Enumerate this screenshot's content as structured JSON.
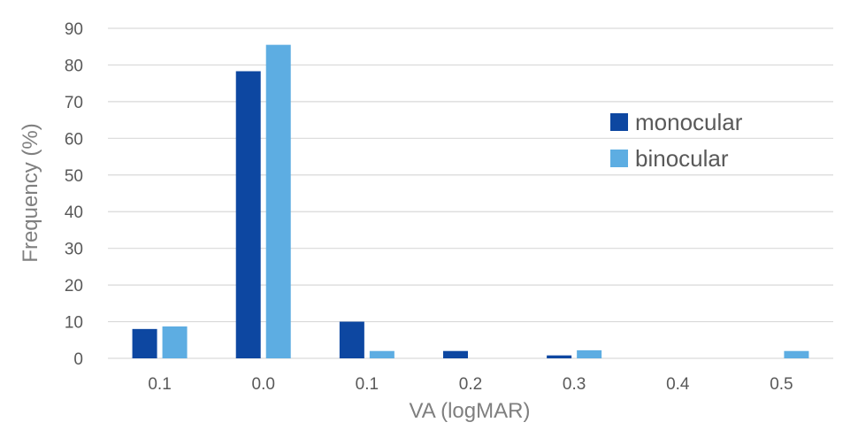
{
  "chart_data": {
    "type": "bar",
    "categories": [
      "0.1",
      "0.0",
      "0.1",
      "0.2",
      "0.3",
      "0.4",
      "0.5"
    ],
    "series": [
      {
        "name": "monocular",
        "color": "#0d47a1",
        "values": [
          8,
          78.3,
          10,
          2,
          0.8,
          0,
          0
        ]
      },
      {
        "name": "binocular",
        "color": "#5dade2",
        "values": [
          8.7,
          85.5,
          2,
          0,
          2.2,
          0,
          2
        ]
      }
    ],
    "title": "",
    "xlabel": "VA (logMAR)",
    "ylabel": "Frequency (%)",
    "ylim": [
      0,
      90
    ],
    "yticks": [
      "0",
      "10",
      "20",
      "30",
      "40",
      "50",
      "60",
      "70",
      "80",
      "90"
    ],
    "grid": true,
    "legend_position": "right"
  }
}
